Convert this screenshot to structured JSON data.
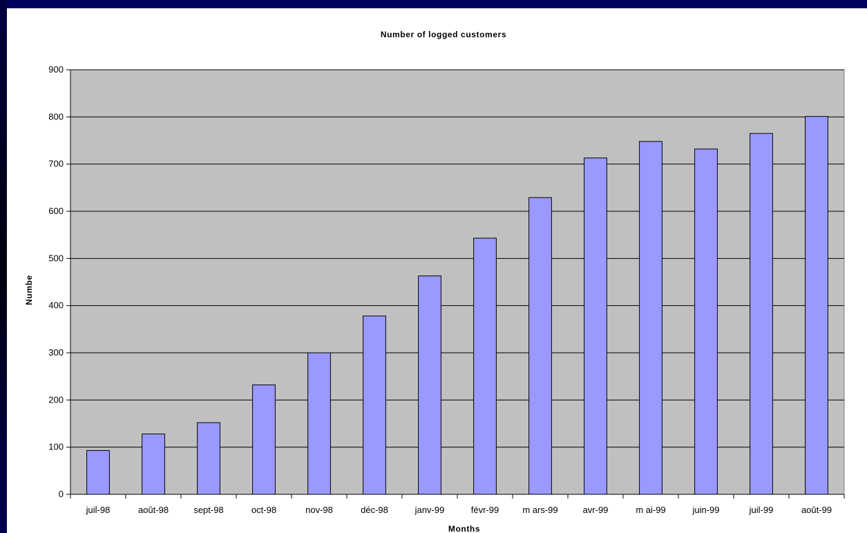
{
  "chart_data": {
    "type": "bar",
    "title": "Number of logged customers",
    "xlabel": "Months",
    "ylabel": "Numbe",
    "categories": [
      "juil-98",
      "août-98",
      "sept-98",
      "oct-98",
      "nov-98",
      "déc-98",
      "janv-99",
      "févr-99",
      "m ars-99",
      "avr-99",
      "m ai-99",
      "juin-99",
      "juil-99",
      "août-99"
    ],
    "values": [
      93,
      128,
      152,
      232,
      300,
      378,
      463,
      543,
      629,
      713,
      748,
      732,
      765,
      801
    ],
    "ylim": [
      0,
      900
    ],
    "yticks": [
      "0",
      "100",
      "200",
      "300",
      "400",
      "500",
      "600",
      "700",
      "800",
      "900"
    ],
    "grid": true,
    "legend": "none",
    "colors": {
      "plot_background": "#c0c0c0",
      "bar_fill": "#9999ff",
      "bar_stroke": "#000000",
      "gridline": "#000000",
      "slide_background": "#00007a"
    }
  }
}
